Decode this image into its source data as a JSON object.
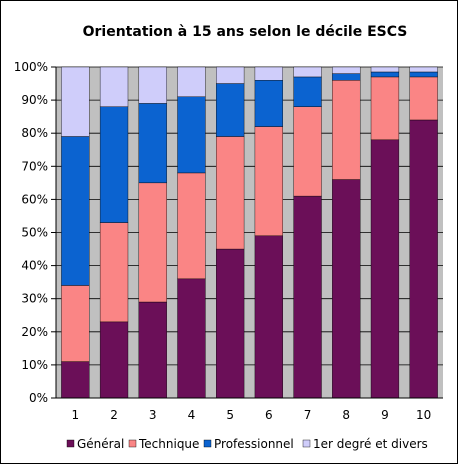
{
  "chart_data": {
    "type": "bar",
    "stacked": true,
    "title": "Orientation à 15 ans selon le décile ESCS",
    "xlabel": "",
    "ylabel": "",
    "categories": [
      "1",
      "2",
      "3",
      "4",
      "5",
      "6",
      "7",
      "8",
      "9",
      "10"
    ],
    "y_ticks": [
      "0%",
      "10%",
      "20%",
      "30%",
      "40%",
      "50%",
      "60%",
      "70%",
      "80%",
      "90%",
      "100%"
    ],
    "ylim": [
      0,
      100
    ],
    "grid": true,
    "legend_position": "bottom",
    "series": [
      {
        "name": "Général",
        "color": "#6b0f58",
        "values": [
          11,
          23,
          29,
          36,
          45,
          49,
          61,
          66,
          78,
          84
        ]
      },
      {
        "name": "Technique",
        "color": "#fa8585",
        "values": [
          23,
          30,
          36,
          32,
          34,
          33,
          27,
          30,
          19,
          13
        ]
      },
      {
        "name": "Professionnel",
        "color": "#0b63d0",
        "values": [
          45,
          35,
          24,
          23,
          16,
          14,
          9,
          2,
          1.5,
          1.5
        ]
      },
      {
        "name": "1er degré et divers",
        "color": "#cfcdfa",
        "values": [
          21,
          12,
          11,
          9,
          5,
          4,
          3,
          2,
          1.5,
          1.5
        ]
      }
    ],
    "plot_background": "#c0c0c0"
  }
}
